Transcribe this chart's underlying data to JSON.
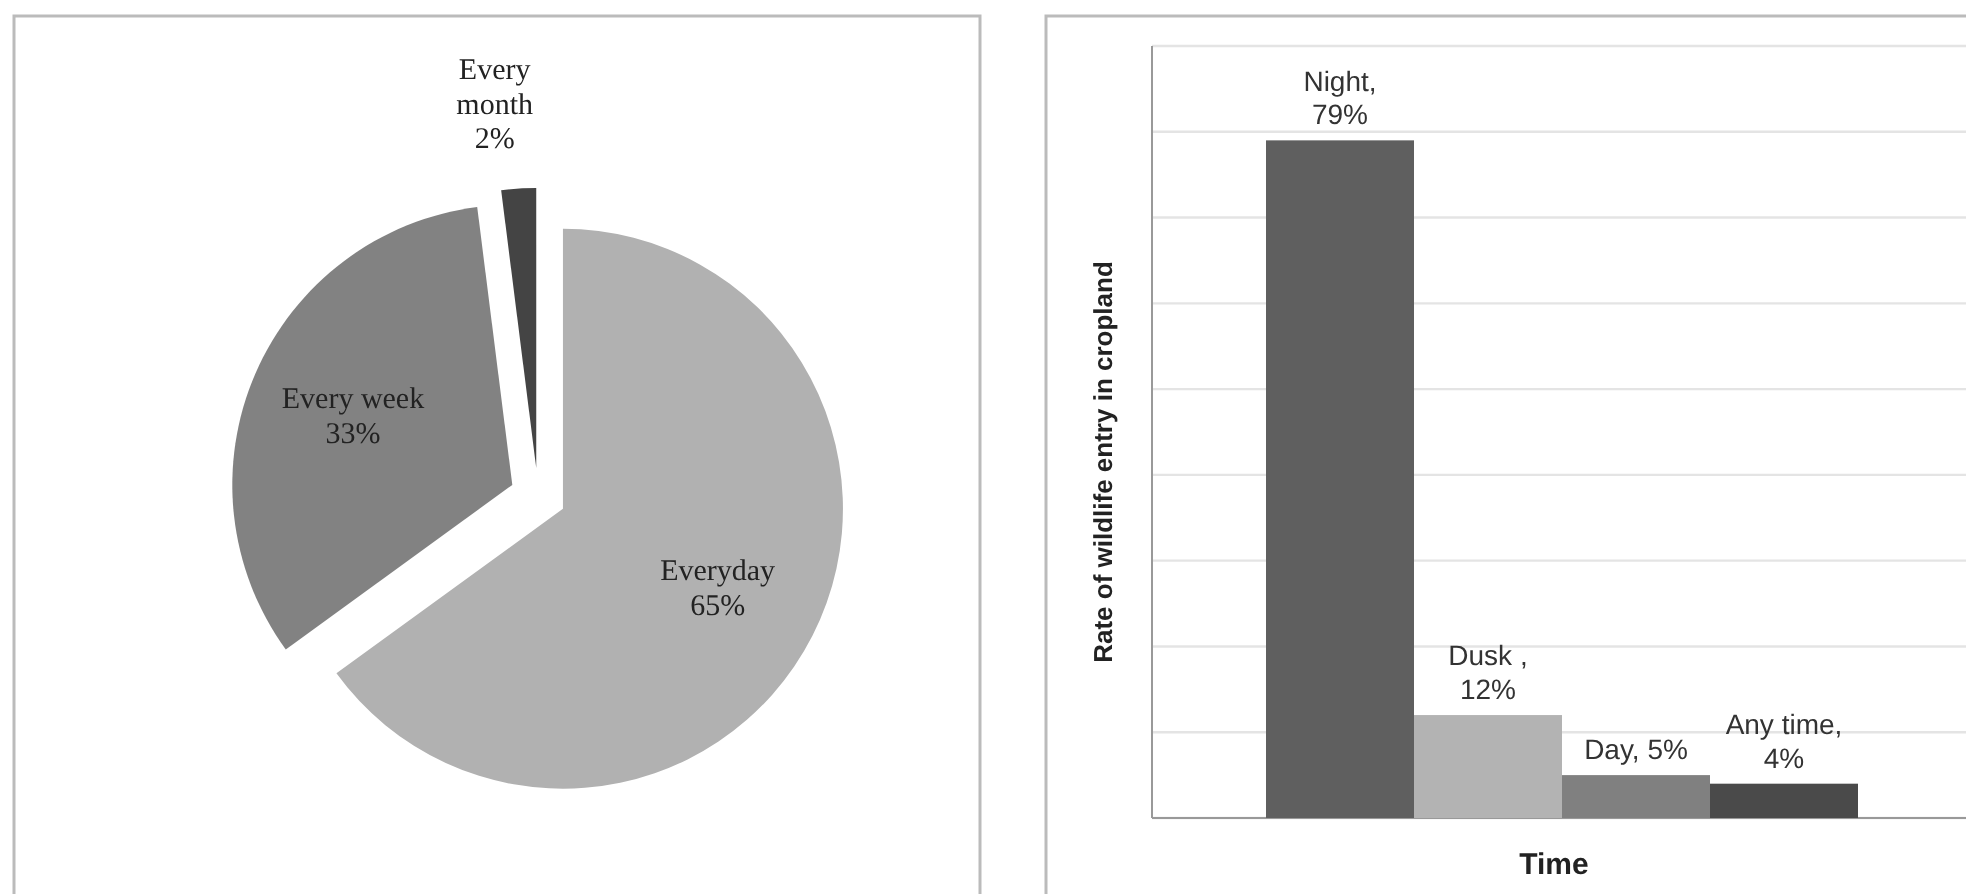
{
  "chart_data": [
    {
      "type": "pie",
      "categories": [
        "Everyday",
        "Every week",
        "Every month"
      ],
      "values": [
        65,
        33,
        2
      ],
      "colors": [
        "#b1b1b1",
        "#828282",
        "#444444"
      ],
      "value_labels": [
        "65%",
        "33%",
        "2%"
      ]
    },
    {
      "type": "bar",
      "xlabel": "Time",
      "ylabel": "Rate of wildlife entry in cropland",
      "categories": [
        null,
        null,
        null,
        null
      ],
      "values": [
        79,
        12,
        5,
        4
      ],
      "colors": [
        "#5f5f5f",
        "#b3b3b3",
        "#808080",
        "#4a4a4a"
      ],
      "value_labels": [
        "Night, 79%",
        "Dusk , 12%",
        "Day, 5%",
        "Any time, 4%"
      ],
      "ylim": [
        0,
        90
      ],
      "yticks": [
        {
          "value": 0,
          "label": null
        },
        {
          "value": 10,
          "label": null
        },
        {
          "value": 20,
          "label": null
        },
        {
          "value": 30,
          "label": null
        },
        {
          "value": 40,
          "label": null
        },
        {
          "value": 50,
          "label": null
        },
        {
          "value": 60,
          "label": null
        },
        {
          "value": 70,
          "label": null
        },
        {
          "value": 80,
          "label": null
        },
        {
          "value": 90,
          "label": null
        }
      ],
      "grid": "y"
    }
  ]
}
